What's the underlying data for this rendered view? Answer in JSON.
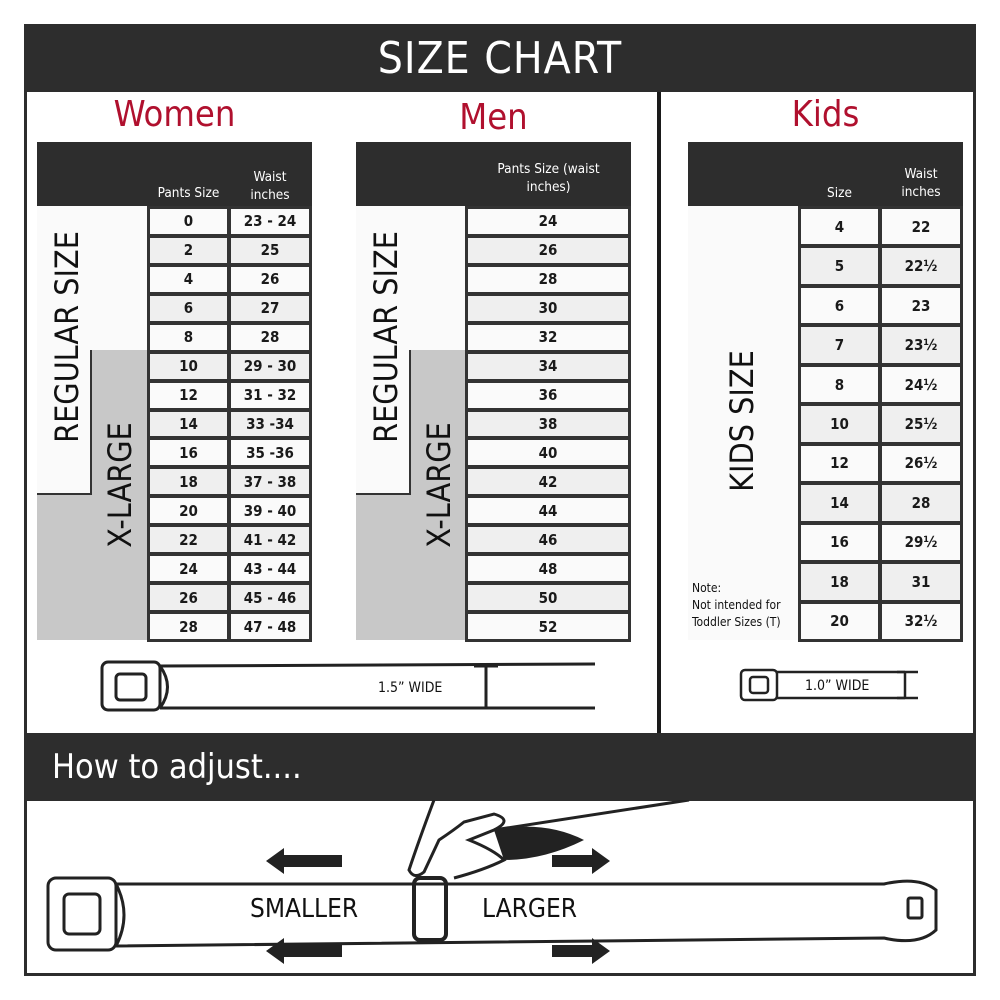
{
  "title": "SIZE CHART",
  "women": {
    "title": "Women",
    "headers": {
      "pants": "Pants Size",
      "waist": "Waist inches"
    },
    "regular_label": "REGULAR SIZE",
    "xlarge_label": "X-LARGE",
    "rows": [
      [
        "0",
        "23 - 24"
      ],
      [
        "2",
        "25"
      ],
      [
        "4",
        "26"
      ],
      [
        "6",
        "27"
      ],
      [
        "8",
        "28"
      ],
      [
        "10",
        "29 - 30"
      ],
      [
        "12",
        "31 - 32"
      ],
      [
        "14",
        "33 -34"
      ],
      [
        "16",
        "35 -36"
      ],
      [
        "18",
        "37 - 38"
      ],
      [
        "20",
        "39 - 40"
      ],
      [
        "22",
        "41 - 42"
      ],
      [
        "24",
        "43 - 44"
      ],
      [
        "26",
        "45 - 46"
      ],
      [
        "28",
        "47 - 48"
      ]
    ],
    "belt_width": "1.5” WIDE"
  },
  "men": {
    "title": "Men",
    "headers": {
      "pants": "Pants Size (waist inches)"
    },
    "regular_label": "REGULAR SIZE",
    "xlarge_label": "X-LARGE",
    "rows": [
      "24",
      "26",
      "28",
      "30",
      "32",
      "34",
      "36",
      "38",
      "40",
      "42",
      "44",
      "46",
      "48",
      "50",
      "52"
    ]
  },
  "kids": {
    "title": "Kids",
    "headers": {
      "size": "Size",
      "waist": "Waist inches"
    },
    "label": "KIDS SIZE",
    "note": [
      "Note:",
      "Not intended for",
      "Toddler Sizes (T)"
    ],
    "rows": [
      [
        "4",
        "22"
      ],
      [
        "5",
        "22½"
      ],
      [
        "6",
        "23"
      ],
      [
        "7",
        "23½"
      ],
      [
        "8",
        "24½"
      ],
      [
        "10",
        "25½"
      ],
      [
        "12",
        "26½"
      ],
      [
        "14",
        "28"
      ],
      [
        "16",
        "29½"
      ],
      [
        "18",
        "31"
      ],
      [
        "20",
        "32½"
      ]
    ],
    "belt_width": "1.0” WIDE"
  },
  "adjust": {
    "title": "How to adjust....",
    "smaller": "SMALLER",
    "larger": "LARGER"
  },
  "colors": {
    "accent": "#b0102e",
    "dark": "#2d2d2d",
    "xlarge_gray": "#c8c8c8"
  }
}
